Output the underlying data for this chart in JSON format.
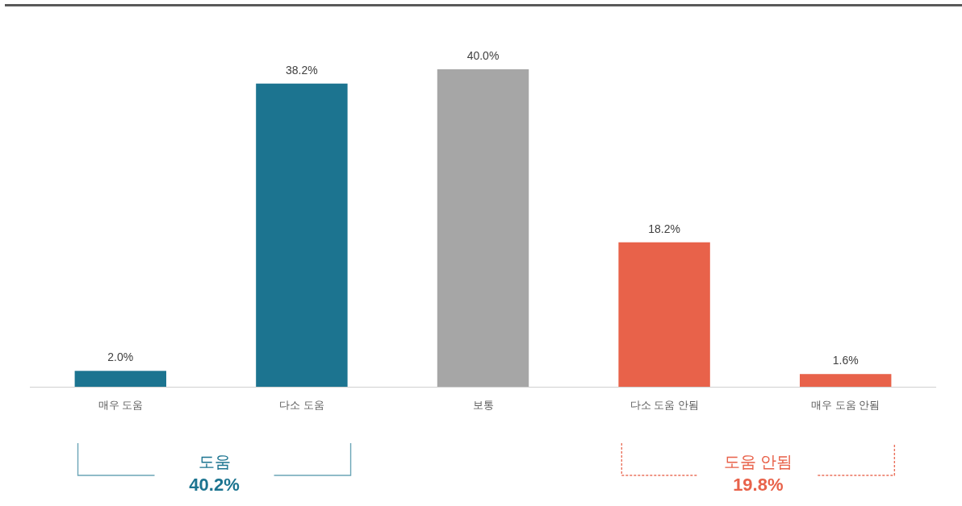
{
  "chart_data": {
    "type": "bar",
    "categories": [
      "매우 도움",
      "다소 도움",
      "보통",
      "다소 도움 안됨",
      "매우 도움 안됨"
    ],
    "values": [
      2.0,
      38.2,
      40.0,
      18.2,
      1.6
    ],
    "colors": [
      "#1c7490",
      "#1c7490",
      "#a6a6a6",
      "#e8624a",
      "#e8624a"
    ],
    "value_labels": [
      "2.0%",
      "38.2%",
      "40.0%",
      "18.2%",
      "1.6%"
    ],
    "annotations": [
      "도움",
      "40.2%",
      "도움 안됨",
      "19.8%"
    ]
  }
}
